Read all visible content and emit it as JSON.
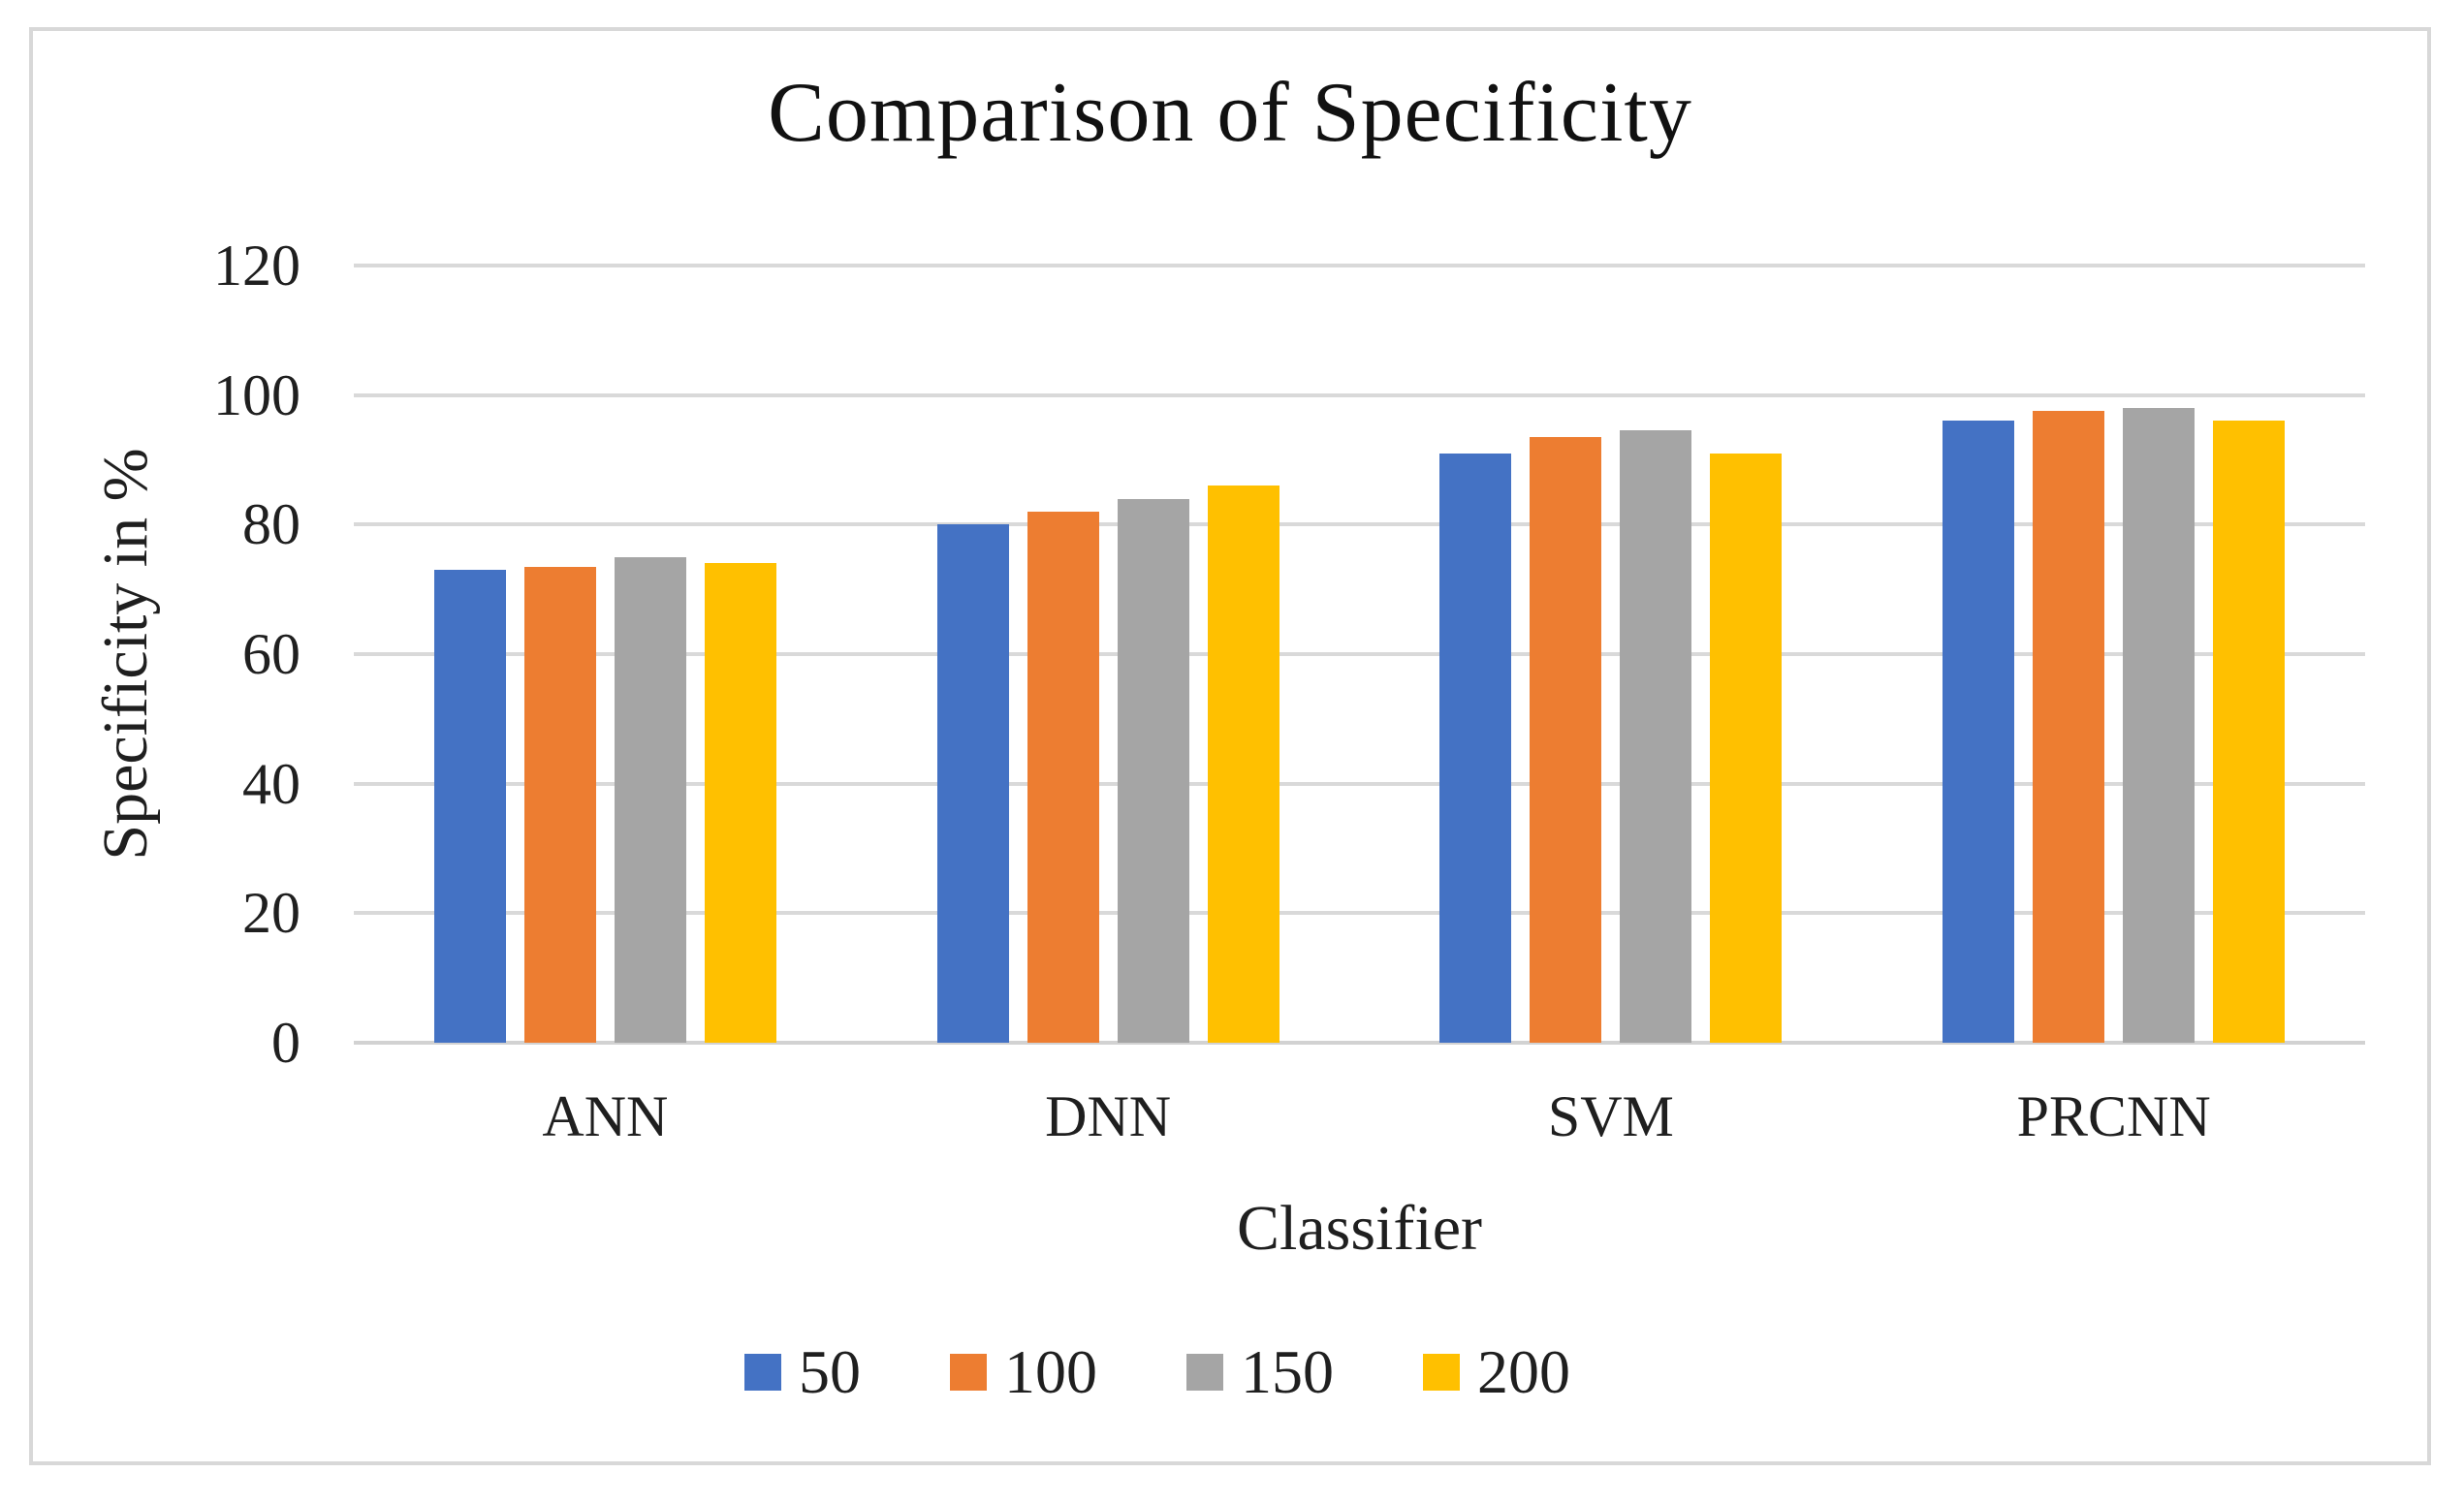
{
  "figure": {
    "background": "#ffffff",
    "border_color": "#d8d8d8",
    "gridline_color": "#d9d9d9",
    "text_color": "#1f1f1f"
  },
  "chart_data": {
    "type": "bar",
    "title": "Comparison of Specificity",
    "xlabel": "Classifier",
    "ylabel": "Specificity in %",
    "categories": [
      "ANN",
      "DNN",
      "SVM",
      "PRCNN"
    ],
    "series": [
      {
        "name": "50",
        "color": "#4472C4",
        "values": [
          73,
          80,
          91,
          96
        ]
      },
      {
        "name": "100",
        "color": "#ED7D31",
        "values": [
          73.5,
          82,
          93.5,
          97.5
        ]
      },
      {
        "name": "150",
        "color": "#A5A5A5",
        "values": [
          75,
          84,
          94.5,
          98
        ]
      },
      {
        "name": "200",
        "color": "#FFC000",
        "values": [
          74,
          86,
          91,
          96
        ]
      }
    ],
    "ylim": [
      0,
      120
    ],
    "yticks": [
      0,
      20,
      40,
      60,
      80,
      100,
      120
    ],
    "grid": true,
    "legend_position": "bottom"
  }
}
